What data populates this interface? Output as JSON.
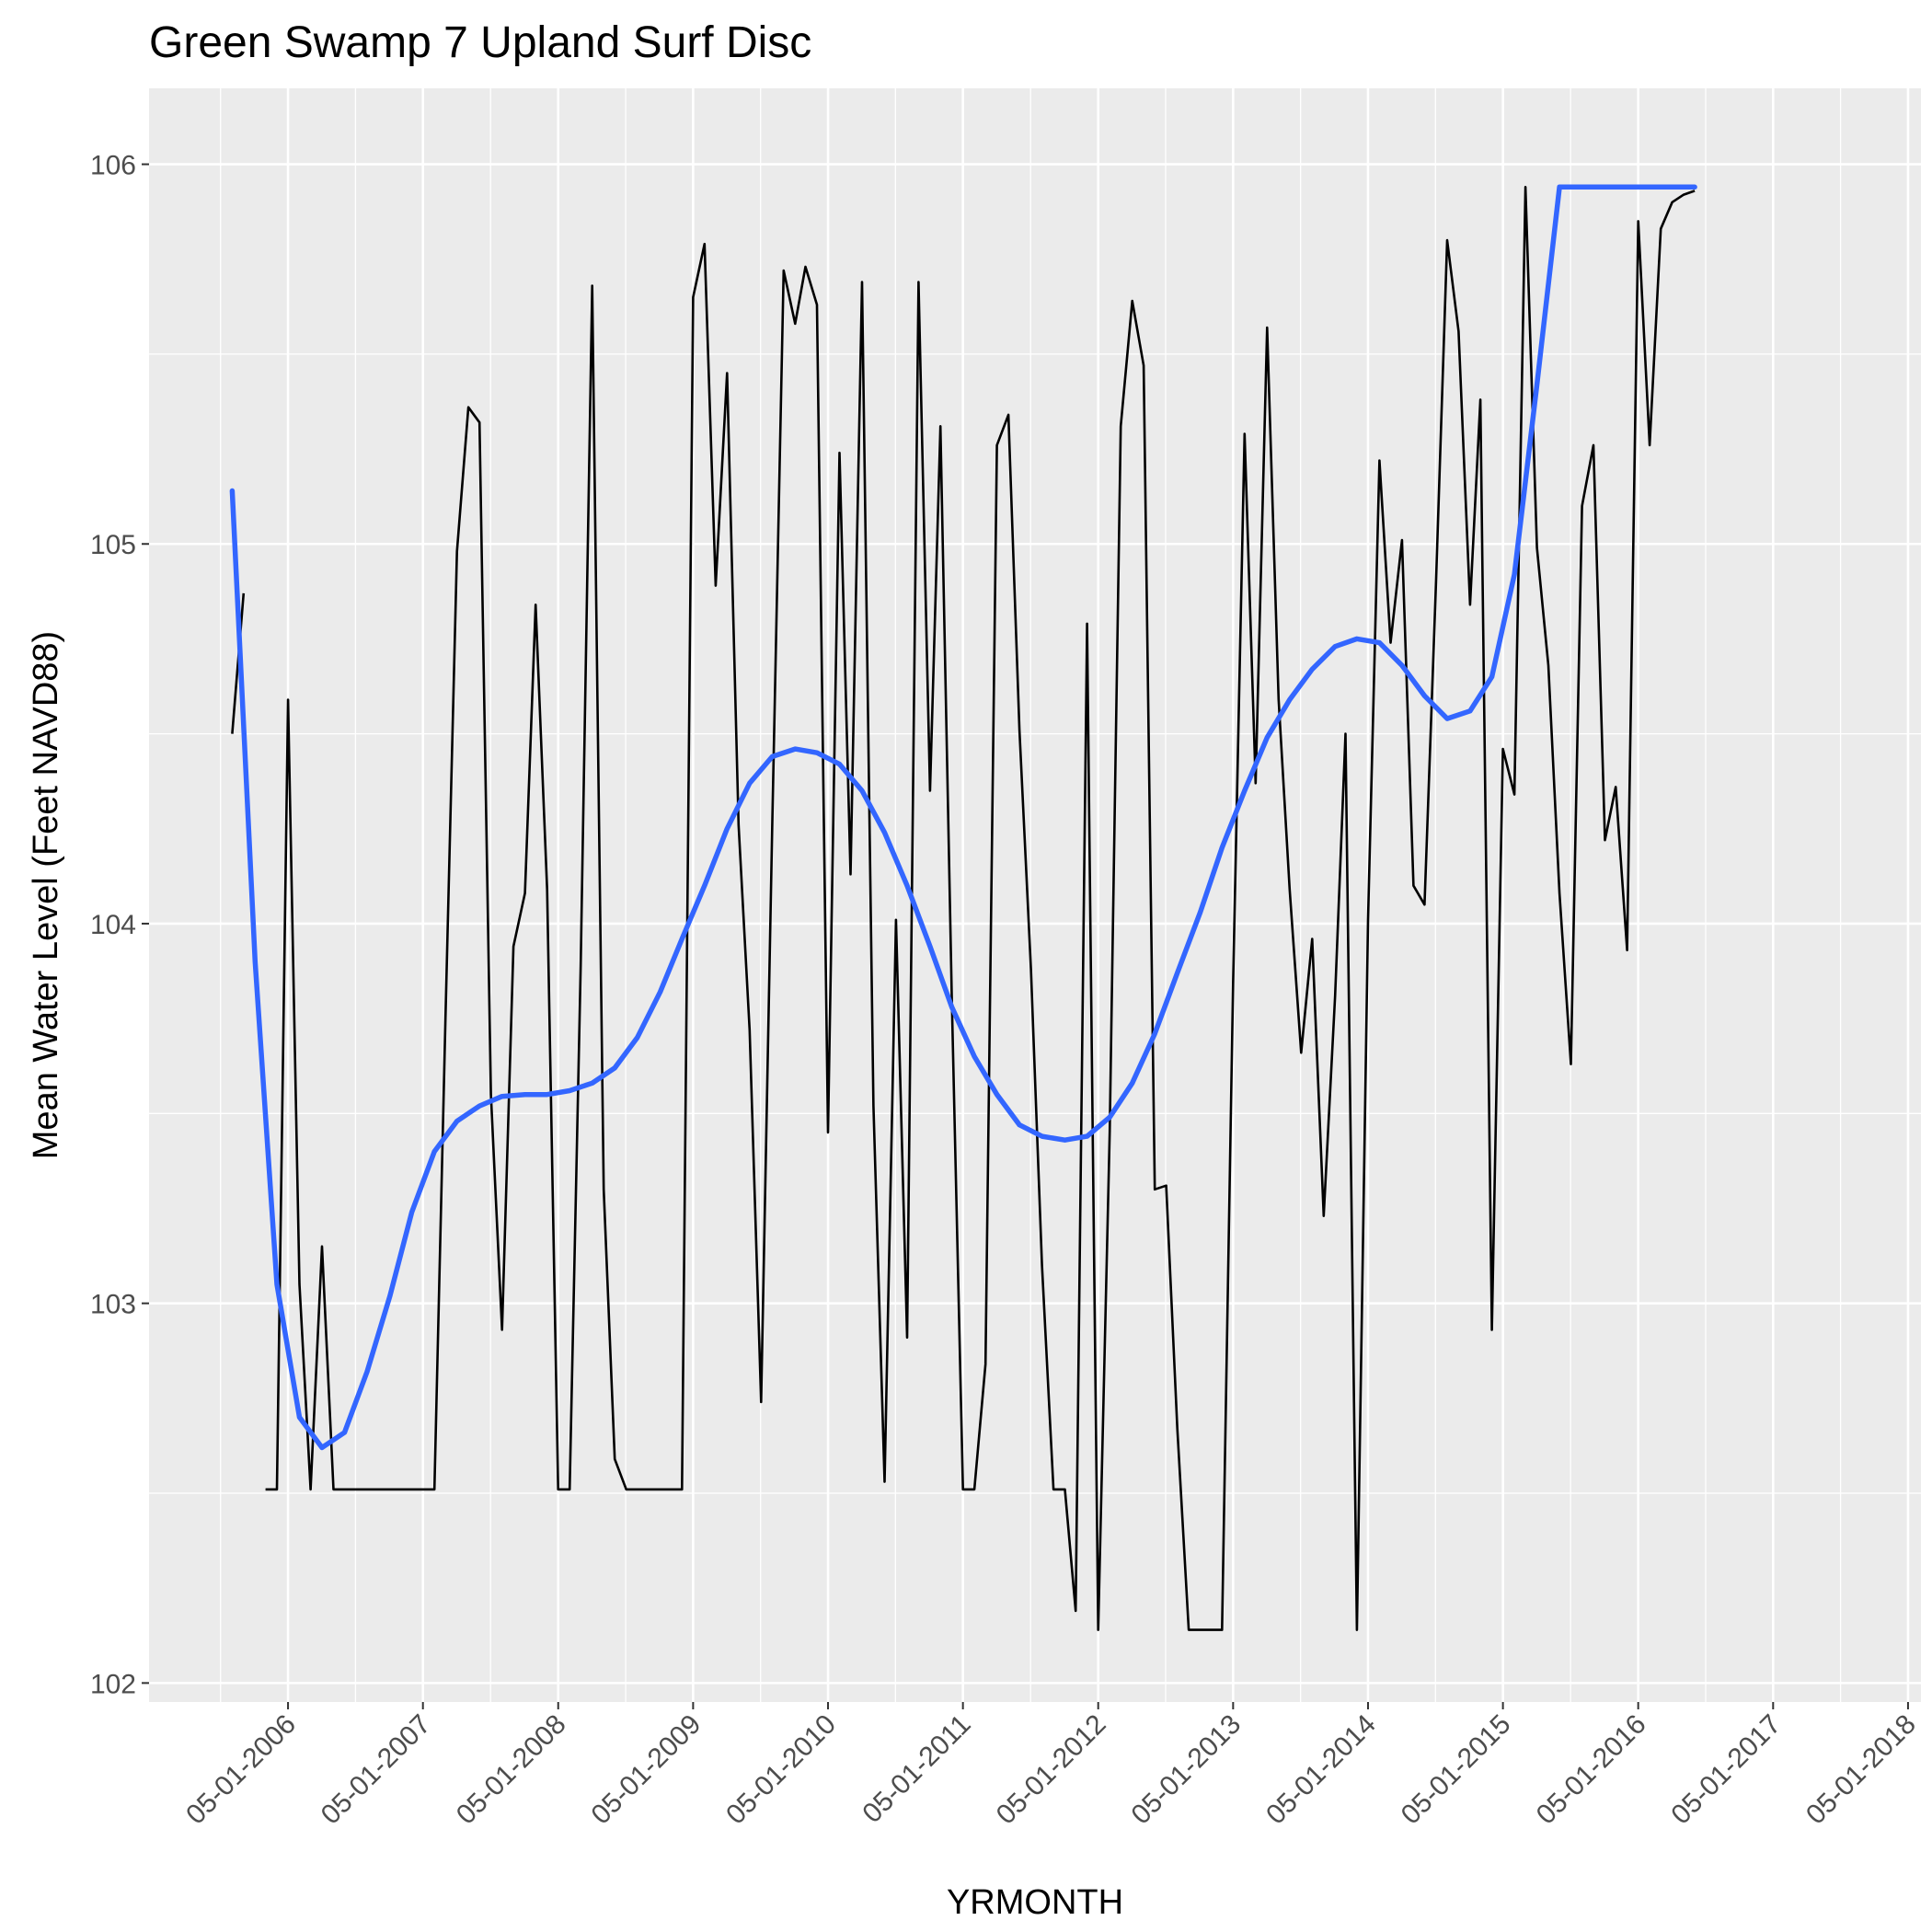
{
  "chart_data": {
    "type": "line",
    "title": "Green Swamp 7 Upland Surf Disc",
    "xlabel": "YRMONTH",
    "ylabel": "Mean Water Level (Feet NAVD88)",
    "x_axis_type": "date",
    "xlim": [
      "2005-04-20",
      "2018-06-05"
    ],
    "ylim": [
      101.95,
      106.2
    ],
    "grid": true,
    "legend": "none",
    "x_ticks": [
      "2006-05-01",
      "2007-05-01",
      "2008-05-01",
      "2009-05-01",
      "2010-05-01",
      "2011-05-01",
      "2012-05-01",
      "2013-05-01",
      "2014-05-01",
      "2015-05-01",
      "2016-05-01",
      "2017-05-01",
      "2018-05-01"
    ],
    "x_tick_labels": [
      "05-01-2006",
      "05-01-2007",
      "05-01-2008",
      "05-01-2009",
      "05-01-2010",
      "05-01-2011",
      "05-01-2012",
      "05-01-2013",
      "05-01-2014",
      "05-01-2015",
      "05-01-2016",
      "05-01-2017",
      "05-01-2018"
    ],
    "y_ticks": [
      102,
      103,
      104,
      105,
      106
    ],
    "y_tick_labels": [
      "102",
      "103",
      "104",
      "105",
      "106"
    ],
    "series": [
      {
        "role": "observed",
        "color": "#000000",
        "segments": [
          {
            "x": [
              "2005-12-01",
              "2006-01-01"
            ],
            "y": [
              104.5,
              104.87
            ]
          },
          {
            "x": [
              "2006-03-01",
              "2006-04-01",
              "2006-05-01",
              "2006-06-01",
              "2006-07-01",
              "2006-08-01",
              "2006-09-01",
              "2006-10-01",
              "2006-11-01",
              "2006-12-01",
              "2007-01-01",
              "2007-02-01",
              "2007-03-01",
              "2007-04-01",
              "2007-05-01",
              "2007-06-01",
              "2007-07-01",
              "2007-08-01",
              "2007-09-01",
              "2007-10-01",
              "2007-11-01",
              "2007-12-01",
              "2008-01-01",
              "2008-02-01",
              "2008-03-01",
              "2008-04-01",
              "2008-05-01",
              "2008-06-01",
              "2008-07-01",
              "2008-08-01",
              "2008-09-01",
              "2008-10-01",
              "2008-11-01",
              "2008-12-01",
              "2009-01-01",
              "2009-02-01",
              "2009-03-01",
              "2009-04-01",
              "2009-05-01",
              "2009-06-01",
              "2009-07-01",
              "2009-08-01",
              "2009-09-01",
              "2009-10-01",
              "2009-11-01",
              "2009-12-01",
              "2010-01-01",
              "2010-02-01",
              "2010-03-01",
              "2010-04-01",
              "2010-05-01",
              "2010-06-01",
              "2010-07-01",
              "2010-08-01",
              "2010-09-01",
              "2010-10-01",
              "2010-11-01",
              "2010-12-01",
              "2011-01-01",
              "2011-02-01",
              "2011-03-01",
              "2011-04-01",
              "2011-05-01",
              "2011-06-01",
              "2011-07-01",
              "2011-08-01",
              "2011-09-01",
              "2011-10-01",
              "2011-11-01",
              "2011-12-01",
              "2012-01-01",
              "2012-02-01",
              "2012-03-01",
              "2012-04-01",
              "2012-05-01",
              "2012-06-01",
              "2012-07-01",
              "2012-08-01",
              "2012-09-01",
              "2012-10-01",
              "2012-11-01",
              "2012-12-01",
              "2013-01-01",
              "2013-02-01",
              "2013-03-01",
              "2013-04-01",
              "2013-05-01",
              "2013-06-01",
              "2013-07-01",
              "2013-08-01",
              "2013-09-01",
              "2013-10-01",
              "2013-11-01",
              "2013-12-01",
              "2014-01-01",
              "2014-02-01",
              "2014-03-01",
              "2014-04-01",
              "2014-05-01",
              "2014-06-01",
              "2014-07-01",
              "2014-08-01",
              "2014-09-01",
              "2014-10-01",
              "2014-11-01",
              "2014-12-01",
              "2015-01-01",
              "2015-02-01",
              "2015-03-01",
              "2015-04-01",
              "2015-05-01",
              "2015-06-01",
              "2015-07-01",
              "2015-08-01",
              "2015-09-01",
              "2015-10-01",
              "2015-11-01",
              "2015-12-01",
              "2016-01-01",
              "2016-02-01",
              "2016-03-01",
              "2016-04-01",
              "2016-05-01",
              "2016-06-01",
              "2016-07-01",
              "2016-08-01",
              "2016-09-01",
              "2016-10-01"
            ],
            "y": [
              102.51,
              102.51,
              104.59,
              103.05,
              102.51,
              103.15,
              102.51,
              102.51,
              102.51,
              102.51,
              102.51,
              102.51,
              102.51,
              102.51,
              102.51,
              102.51,
              103.75,
              104.98,
              105.36,
              105.32,
              103.55,
              102.93,
              103.94,
              104.08,
              104.84,
              104.09,
              102.51,
              102.51,
              103.89,
              105.68,
              103.3,
              102.59,
              102.51,
              102.51,
              102.51,
              102.51,
              102.51,
              102.51,
              105.65,
              105.79,
              104.89,
              105.45,
              104.26,
              103.72,
              102.74,
              104.26,
              105.72,
              105.58,
              105.73,
              105.63,
              103.45,
              105.24,
              104.13,
              105.69,
              103.52,
              102.53,
              104.01,
              102.91,
              105.69,
              104.35,
              105.31,
              103.8,
              102.51,
              102.51,
              102.84,
              105.26,
              105.34,
              104.51,
              103.88,
              103.1,
              102.51,
              102.51,
              102.19,
              104.79,
              102.14,
              103.45,
              105.31,
              105.64,
              105.47,
              103.3,
              103.31,
              102.67,
              102.14,
              102.14,
              102.14,
              102.14,
              103.84,
              105.29,
              104.37,
              105.57,
              104.59,
              104.09,
              103.66,
              103.96,
              103.23,
              103.81,
              104.5,
              102.14,
              104.01,
              105.22,
              104.74,
              105.01,
              104.1,
              104.05,
              104.9,
              105.8,
              105.56,
              104.84,
              105.38,
              102.93,
              104.46,
              104.34,
              105.94,
              104.99,
              104.68,
              104.08,
              103.63,
              105.1,
              105.26,
              104.22,
              104.36,
              103.93,
              105.85,
              105.26,
              105.83,
              105.9,
              105.92,
              105.93
            ]
          }
        ]
      },
      {
        "role": "smooth",
        "color": "#3366ff",
        "x": [
          "2005-12-01",
          "2006-02-01",
          "2006-04-01",
          "2006-06-01",
          "2006-08-01",
          "2006-10-01",
          "2006-12-01",
          "2007-02-01",
          "2007-04-01",
          "2007-06-01",
          "2007-08-01",
          "2007-10-01",
          "2007-12-01",
          "2008-02-01",
          "2008-04-01",
          "2008-06-01",
          "2008-08-01",
          "2008-10-01",
          "2008-12-01",
          "2009-02-01",
          "2009-04-01",
          "2009-06-01",
          "2009-08-01",
          "2009-10-01",
          "2009-12-01",
          "2010-02-01",
          "2010-04-01",
          "2010-06-01",
          "2010-08-01",
          "2010-10-01",
          "2010-12-01",
          "2011-02-01",
          "2011-04-01",
          "2011-06-01",
          "2011-08-01",
          "2011-10-01",
          "2011-12-01",
          "2012-02-01",
          "2012-04-01",
          "2012-06-01",
          "2012-08-01",
          "2012-10-01",
          "2012-12-01",
          "2013-02-01",
          "2013-04-01",
          "2013-06-01",
          "2013-08-01",
          "2013-10-01",
          "2013-12-01",
          "2014-02-01",
          "2014-04-01",
          "2014-06-01",
          "2014-08-01",
          "2014-10-01",
          "2014-12-01",
          "2015-02-01",
          "2015-04-01",
          "2015-06-01",
          "2015-08-01",
          "2015-10-01",
          "2015-12-01",
          "2016-02-01",
          "2016-04-01",
          "2016-06-01",
          "2016-08-01",
          "2016-10-01"
        ],
        "y": [
          105.14,
          103.9,
          103.05,
          102.7,
          102.62,
          102.66,
          102.82,
          103.02,
          103.24,
          103.4,
          103.48,
          103.52,
          103.545,
          103.55,
          103.55,
          103.56,
          103.58,
          103.62,
          103.7,
          103.82,
          103.96,
          104.1,
          104.25,
          104.37,
          104.44,
          104.46,
          104.45,
          104.42,
          104.35,
          104.24,
          104.1,
          103.94,
          103.78,
          103.65,
          103.55,
          103.47,
          103.44,
          103.43,
          103.44,
          103.49,
          103.58,
          103.71,
          103.87,
          104.03,
          104.2,
          104.35,
          104.49,
          104.59,
          104.67,
          104.73,
          104.75,
          104.74,
          104.68,
          104.6,
          104.54,
          104.56,
          104.65,
          104.92,
          105.42,
          105.94,
          105.94,
          105.94,
          105.94,
          105.94,
          105.94,
          105.94
        ]
      }
    ]
  }
}
